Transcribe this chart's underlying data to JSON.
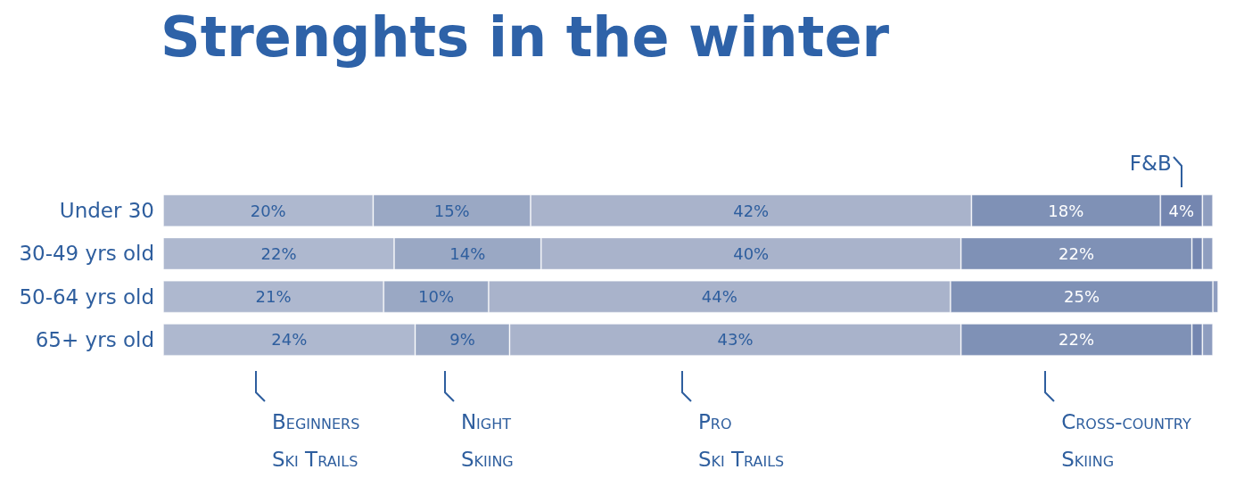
{
  "chart_data": {
    "type": "bar",
    "orientation": "horizontal",
    "stacked": true,
    "title": "Strenghts in the winter",
    "categories": [
      "Under 30",
      "30-49 yrs old",
      "50-64 yrs old",
      "65+ yrs old"
    ],
    "series": [
      {
        "name": "Beginners Ski Trails",
        "color": "#aeb8cf",
        "values": [
          20,
          22,
          21,
          24
        ],
        "value_labels": [
          "20%",
          "22%",
          "21%",
          "24%"
        ]
      },
      {
        "name": "Night Skiing",
        "color": "#9aa8c4",
        "values": [
          15,
          14,
          10,
          9
        ],
        "value_labels": [
          "15%",
          "14%",
          "10%",
          "9%"
        ]
      },
      {
        "name": "Pro Ski Trails",
        "color": "#a9b3cb",
        "values": [
          42,
          40,
          44,
          43
        ],
        "value_labels": [
          "42%",
          "40%",
          "44%",
          "43%"
        ]
      },
      {
        "name": "Cross-country Skiing",
        "color": "#7f91b6",
        "values": [
          18,
          22,
          25,
          22
        ],
        "value_labels": [
          "18%",
          "22%",
          "25%",
          "22%"
        ]
      },
      {
        "name": "F&B",
        "color": "#7486b0",
        "values": [
          4,
          1,
          null,
          1
        ],
        "value_labels": [
          "4%",
          null,
          null,
          null
        ]
      },
      {
        "color": "#8e9dbf",
        "values": [
          1,
          1,
          0.5,
          1
        ],
        "value_labels": [
          null,
          null,
          null,
          null
        ]
      }
    ],
    "legend": false
  }
}
